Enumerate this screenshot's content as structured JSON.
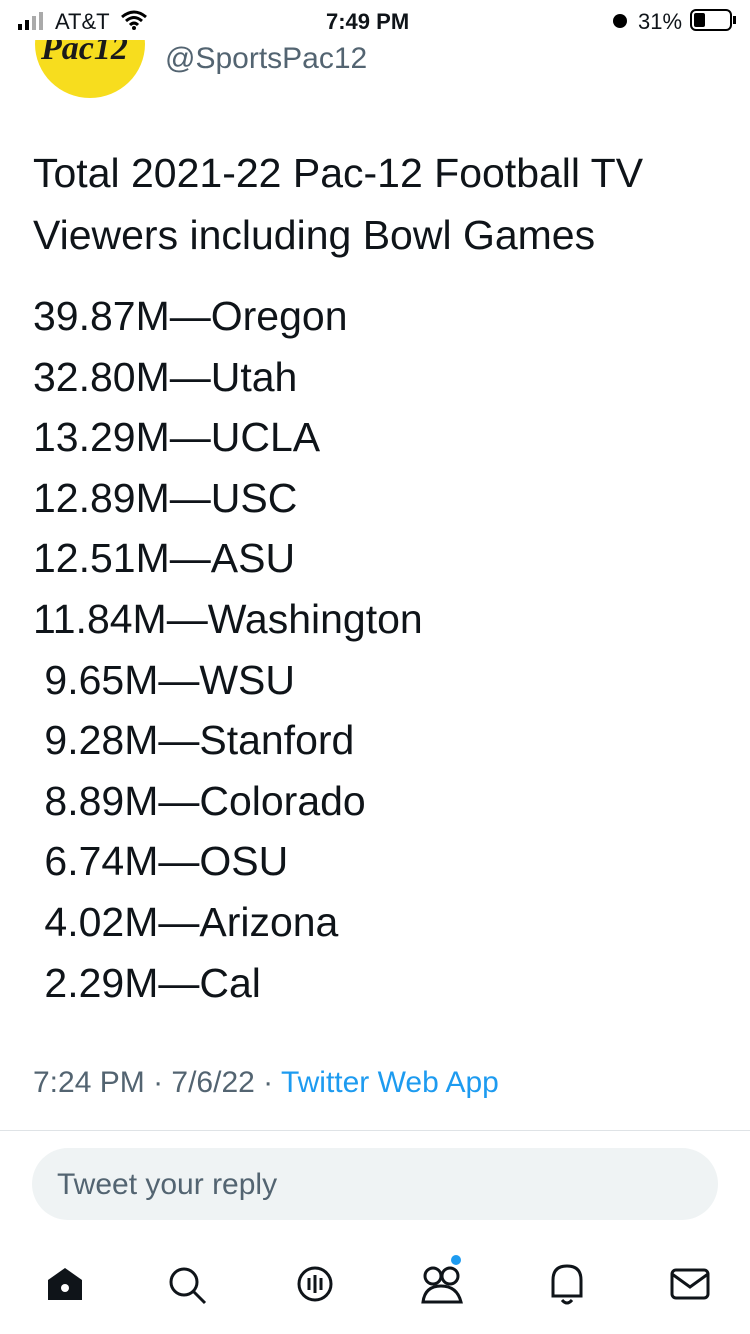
{
  "status_bar": {
    "carrier": "AT&T",
    "time": "7:49 PM",
    "battery": "31%"
  },
  "author": {
    "logo_text": "Pac12",
    "handle": "@SportsPac12"
  },
  "tweet": {
    "title_lines": [
      "Total 2021-22 Pac-12 Football TV",
      "Viewers including Bowl Games"
    ],
    "lines": [
      "39.87M—Oregon",
      "32.80M—Utah",
      "13.29M—UCLA",
      "12.89M—USC",
      "12.51M—ASU",
      "11.84M—Washington",
      " 9.65M—WSU",
      " 9.28M—Stanford",
      " 8.89M—Colorado",
      " 6.74M—OSU",
      " 4.02M—Arizona",
      " 2.29M—Cal"
    ],
    "time": "7:24 PM",
    "date": "7/6/22",
    "source": "Twitter Web App"
  },
  "reply": {
    "placeholder": "Tweet your reply"
  }
}
